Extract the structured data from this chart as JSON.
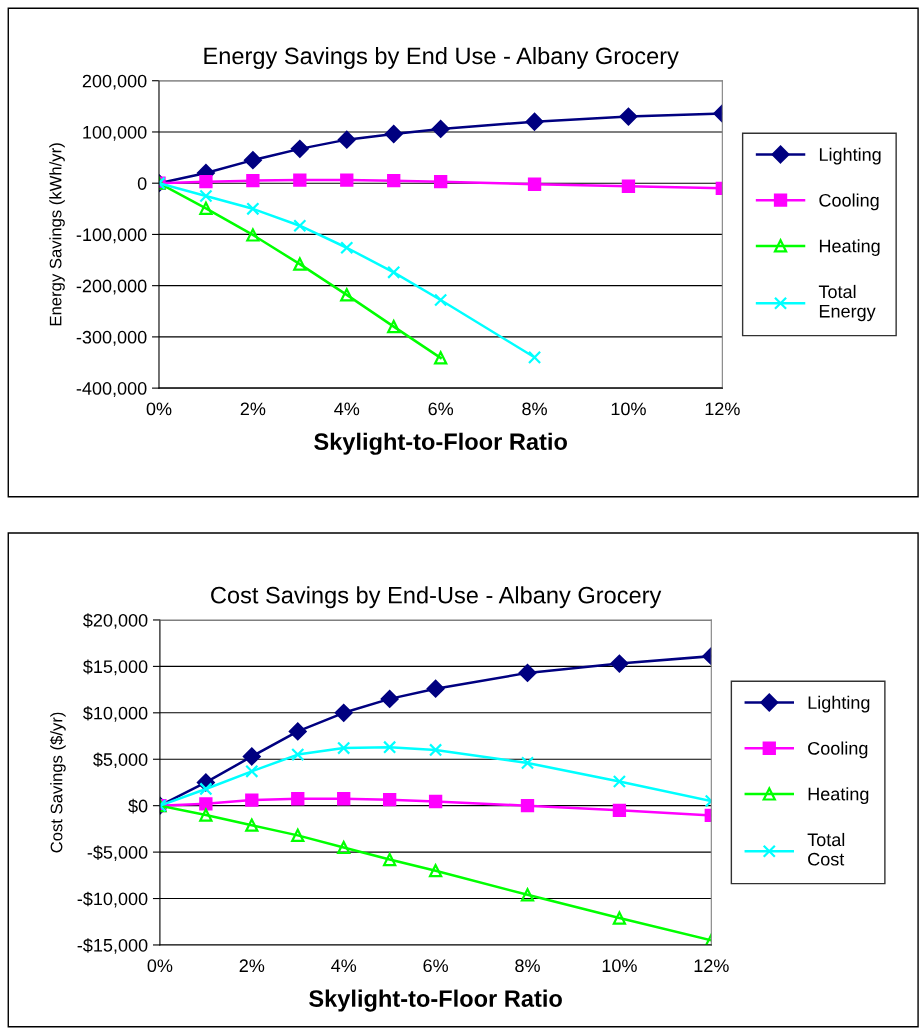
{
  "chart_data": [
    {
      "type": "line",
      "title": "Energy Savings by End Use - Albany Grocery",
      "xlabel": "Skylight-to-Floor Ratio",
      "ylabel": "Energy Savings (kWh/yr)",
      "x": [
        0,
        1,
        2,
        3,
        4,
        5,
        6,
        8,
        10,
        12
      ],
      "xlim": [
        0,
        12
      ],
      "xticks": [
        {
          "value": 0,
          "label": "0%"
        },
        {
          "value": 2,
          "label": "2%"
        },
        {
          "value": 4,
          "label": "4%"
        },
        {
          "value": 6,
          "label": "6%"
        },
        {
          "value": 8,
          "label": "8%"
        },
        {
          "value": 10,
          "label": "10%"
        },
        {
          "value": 12,
          "label": "12%"
        }
      ],
      "ylim": [
        -400000,
        200000
      ],
      "yticks": [
        {
          "value": -400000,
          "label": "-400,000"
        },
        {
          "value": -300000,
          "label": "-300,000"
        },
        {
          "value": -200000,
          "label": "-200,000"
        },
        {
          "value": -100000,
          "label": "-100,000"
        },
        0,
        {
          "value": 100000,
          "label": "100,000"
        },
        {
          "value": 200000,
          "label": "200,000"
        }
      ],
      "grid": "y",
      "legend": "right",
      "line_style": "solid",
      "series": [
        {
          "name": "Lighting",
          "color": "#000080",
          "marker": "diamond",
          "values": [
            0,
            20000,
            45000,
            67000,
            85000,
            96000,
            106000,
            120000,
            130000,
            136000
          ]
        },
        {
          "name": "Cooling",
          "color": "#ff00ff",
          "marker": "square",
          "values": [
            0,
            3000,
            5000,
            6000,
            6000,
            5000,
            3000,
            -2000,
            -6000,
            -10000
          ]
        },
        {
          "name": "Heating",
          "color": "#00ff00",
          "marker": "triangle",
          "values": [
            0,
            -49000,
            -101000,
            -158000,
            -218000,
            -280000,
            -341000,
            null,
            null,
            null
          ]
        },
        {
          "name": "Total\nEnergy",
          "color": "#00ffff",
          "marker": "cross",
          "values": [
            0,
            -25000,
            -50000,
            -83000,
            -126000,
            -174000,
            -228000,
            -340000,
            null,
            null
          ]
        }
      ]
    },
    {
      "type": "line",
      "title": "Cost Savings by End-Use - Albany Grocery",
      "xlabel": "Skylight-to-Floor Ratio",
      "ylabel": "Cost Savings ($/yr)",
      "x": [
        0,
        1,
        2,
        3,
        4,
        5,
        6,
        8,
        10,
        12
      ],
      "xlim": [
        0,
        12
      ],
      "xticks": [
        {
          "value": 0,
          "label": "0%"
        },
        {
          "value": 2,
          "label": "2%"
        },
        {
          "value": 4,
          "label": "4%"
        },
        {
          "value": 6,
          "label": "6%"
        },
        {
          "value": 8,
          "label": "8%"
        },
        {
          "value": 10,
          "label": "10%"
        },
        {
          "value": 12,
          "label": "12%"
        }
      ],
      "ylim": [
        -15000,
        20000
      ],
      "yticks": [
        {
          "value": -15000,
          "label": "-$15,000"
        },
        {
          "value": -10000,
          "label": "-$10,000"
        },
        {
          "value": -5000,
          "label": "-$5,000"
        },
        {
          "value": 0,
          "label": "$0"
        },
        {
          "value": 5000,
          "label": "$5,000"
        },
        {
          "value": 10000,
          "label": "$10,000"
        },
        {
          "value": 15000,
          "label": "$15,000"
        },
        {
          "value": 20000,
          "label": "$20,000"
        }
      ],
      "grid": "y",
      "legend": "right",
      "line_style": "solid",
      "series": [
        {
          "name": "Lighting",
          "color": "#000080",
          "marker": "diamond",
          "values": [
            0,
            2500,
            5300,
            8000,
            10000,
            11500,
            12600,
            14300,
            15300,
            16100
          ]
        },
        {
          "name": "Cooling",
          "color": "#ff00ff",
          "marker": "square",
          "values": [
            0,
            200,
            600,
            750,
            750,
            650,
            450,
            0,
            -500,
            -1050
          ]
        },
        {
          "name": "Heating",
          "color": "#00ff00",
          "marker": "triangle",
          "values": [
            0,
            -1000,
            -2100,
            -3200,
            -4500,
            -5800,
            -7000,
            -9600,
            -12100,
            -14500
          ]
        },
        {
          "name": "Total\nCost",
          "color": "#00ffff",
          "marker": "cross",
          "values": [
            0,
            1800,
            3700,
            5500,
            6200,
            6300,
            6000,
            4600,
            2600,
            500
          ]
        }
      ]
    }
  ]
}
